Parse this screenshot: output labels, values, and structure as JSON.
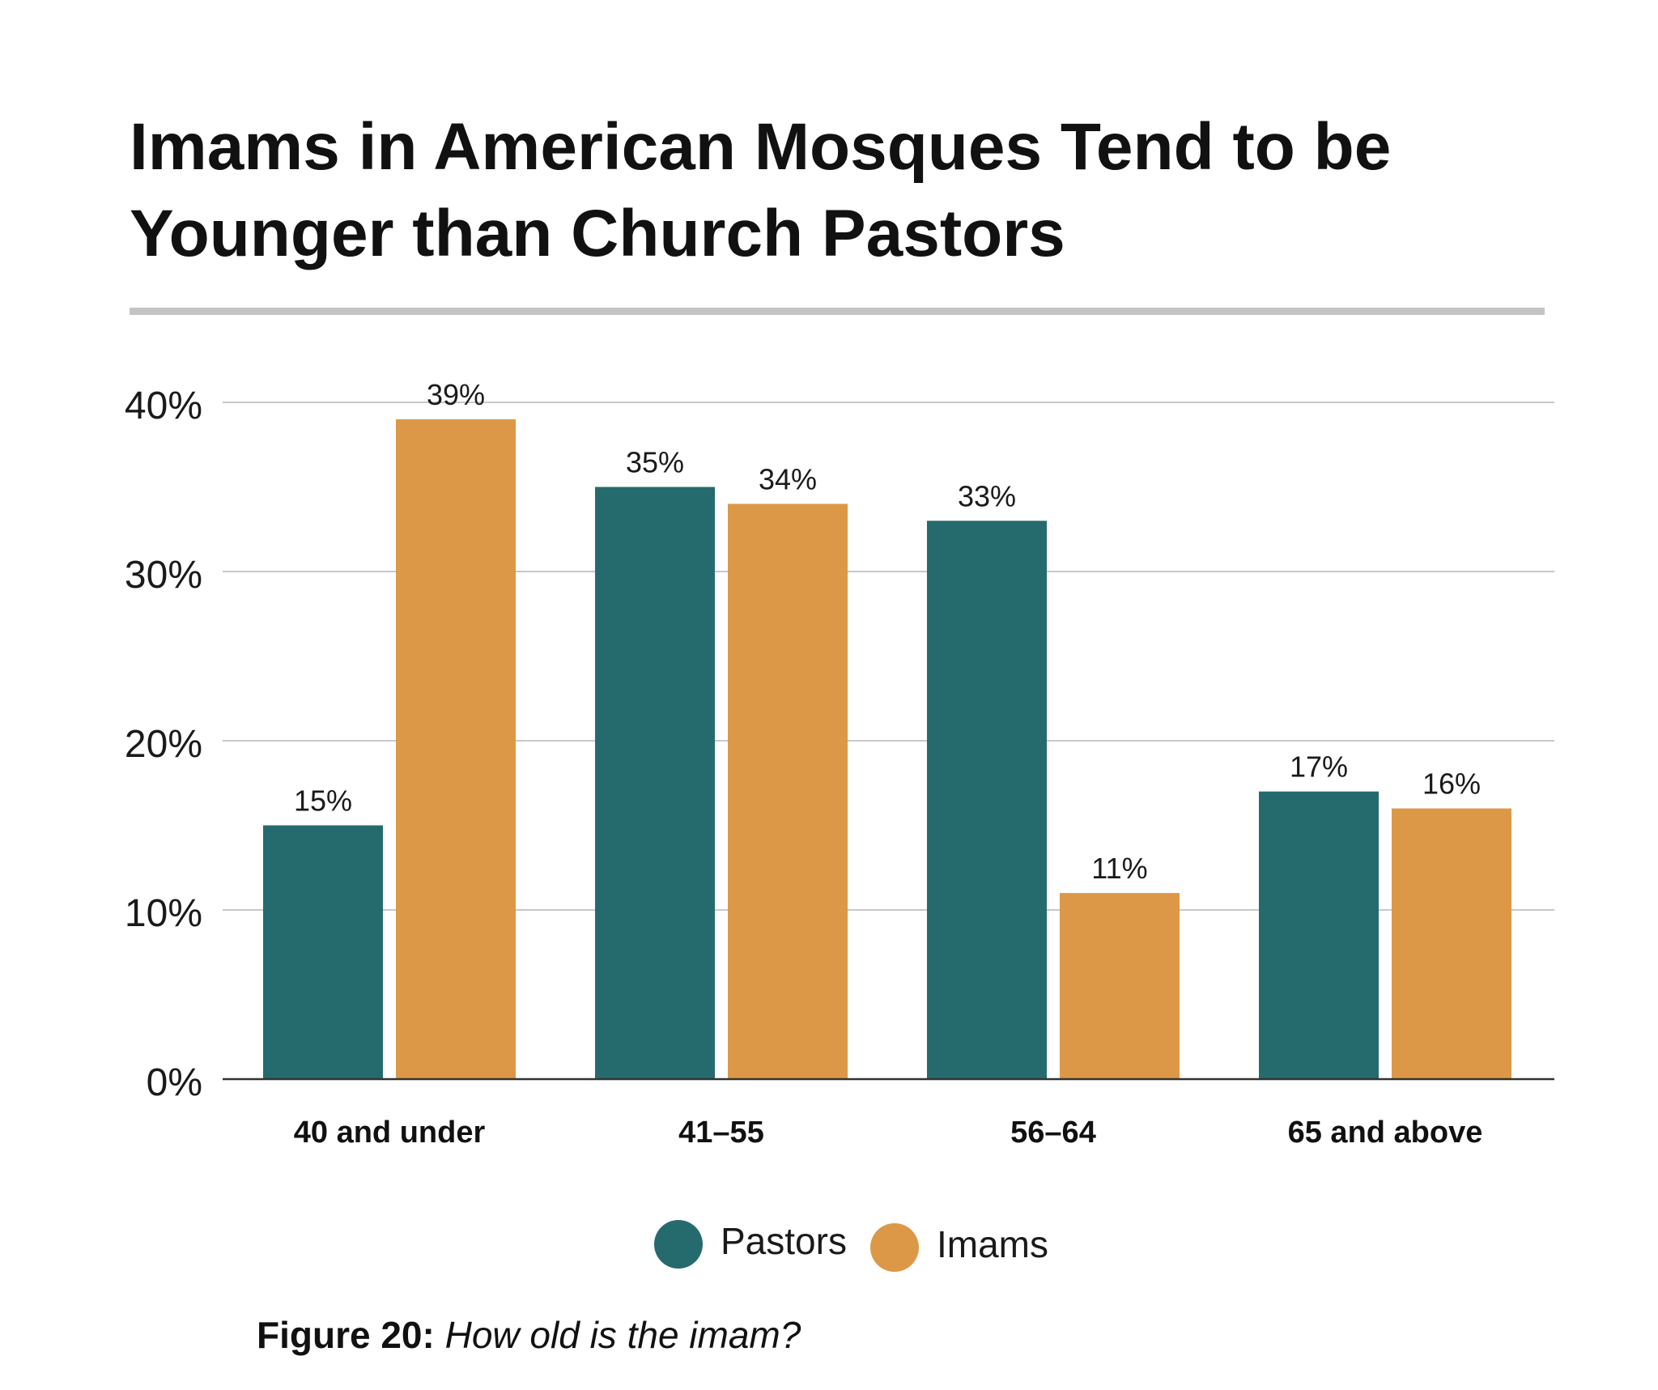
{
  "title": "Imams in American Mosques Tend to be Younger than Church Pastors",
  "caption": {
    "label": "Figure 20:",
    "question": "How old is the imam?"
  },
  "legend": [
    {
      "name": "Pastors",
      "color": "#256b6e"
    },
    {
      "name": "Imams",
      "color": "#dd9847"
    }
  ],
  "colors": {
    "pastors": "#256b6e",
    "imams": "#dd9847",
    "gridline": "#c8c8c8",
    "axis": "#333333",
    "rule": "#c4c4c4"
  },
  "chart_data": {
    "type": "bar",
    "title": "Imams in American Mosques Tend to be Younger than Church Pastors",
    "xlabel": "",
    "ylabel": "",
    "categories": [
      "40 and under",
      "41–55",
      "56–64",
      "65 and above"
    ],
    "series": [
      {
        "name": "Pastors",
        "values": [
          15,
          35,
          33,
          17
        ],
        "labels": [
          "15%",
          "35%",
          "33%",
          "17%"
        ]
      },
      {
        "name": "Imams",
        "values": [
          39,
          34,
          11,
          16
        ],
        "labels": [
          "39%",
          "34%",
          "11%",
          "16%"
        ]
      }
    ],
    "ylim": [
      0,
      40
    ],
    "yticks": [
      0,
      10,
      20,
      30,
      40
    ],
    "ytick_labels": [
      "0%",
      "10%",
      "20%",
      "30%",
      "40%"
    ],
    "grid": true,
    "legend_position": "bottom-center"
  }
}
